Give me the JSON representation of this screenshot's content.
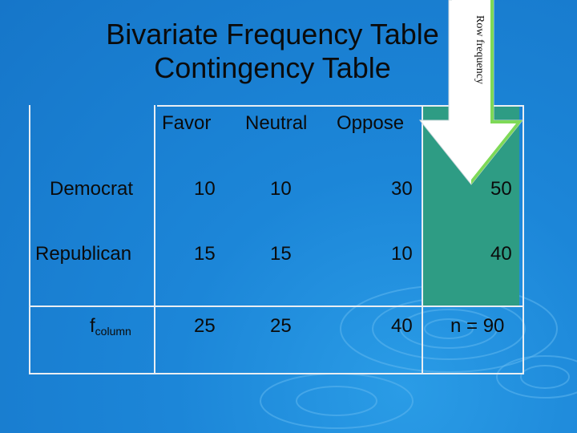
{
  "title_line1": "Bivariate Frequency Table",
  "title_line2": "Contingency Table",
  "arrow_label": "Row frequency",
  "table": {
    "col_headers": [
      "Favor",
      "Neutral",
      "Oppose"
    ],
    "rows": [
      {
        "label": "Democrat",
        "values": [
          "10",
          "10",
          "30",
          "50"
        ]
      },
      {
        "label": "Republican",
        "values": [
          "15",
          "15",
          "10",
          "40"
        ]
      }
    ],
    "totals_row": {
      "label_main": "f",
      "label_sub": "column",
      "values": [
        "25",
        "25",
        "40",
        "n = 90"
      ]
    }
  },
  "colors": {
    "background": "#1f86d8",
    "highlight": "#2e9c84",
    "arrow": "#7ed957"
  }
}
